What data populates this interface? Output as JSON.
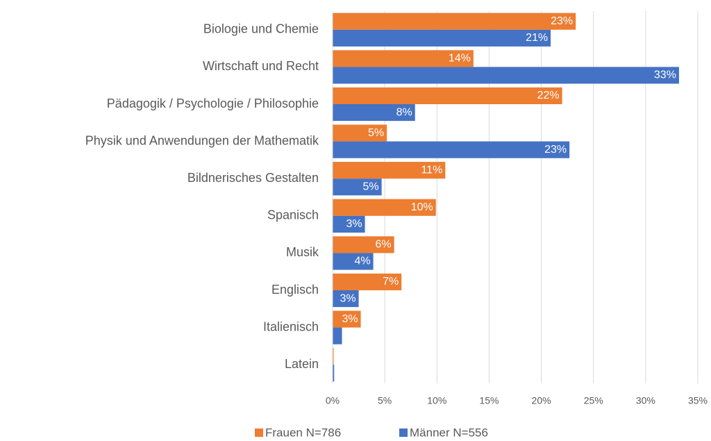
{
  "chart_data": {
    "type": "hbar",
    "categories": [
      "Biologie und Chemie",
      "Wirtschaft und Recht",
      "Pädagogik / Psychologie / Philosophie",
      "Physik und Anwendungen der Mathematik",
      "Bildnerisches Gestalten",
      "Spanisch",
      "Musik",
      "Englisch",
      "Italienisch",
      "Latein"
    ],
    "series": [
      {
        "name": "Frauen N=786",
        "color": "#ed7d31",
        "values": [
          23.3,
          13.5,
          22,
          5.2,
          10.8,
          9.9,
          5.9,
          6.6,
          2.7,
          0.1
        ],
        "value_labels": [
          "23%",
          "14%",
          "22%",
          "5%",
          "11%",
          "10%",
          "6%",
          "7%",
          "3%",
          null
        ]
      },
      {
        "name": "Männer N=556",
        "color": "#4472c4",
        "values": [
          20.9,
          33.2,
          7.9,
          22.7,
          4.7,
          3.1,
          3.9,
          2.5,
          0.9,
          0.15
        ],
        "value_labels": [
          "21%",
          "33%",
          "8%",
          "23%",
          "5%",
          "3%",
          "4%",
          "3%",
          null,
          null
        ]
      }
    ],
    "xlim": [
      0,
      35
    ],
    "xticks": [
      {
        "value": 0,
        "label": "0%"
      },
      {
        "value": 5,
        "label": "5%"
      },
      {
        "value": 10,
        "label": "10%"
      },
      {
        "value": 15,
        "label": "15%"
      },
      {
        "value": 20,
        "label": "20%"
      },
      {
        "value": 25,
        "label": "25%"
      },
      {
        "value": 30,
        "label": "30%"
      },
      {
        "value": 35,
        "label": "35%"
      }
    ],
    "grid": true,
    "legend": "bottom"
  }
}
